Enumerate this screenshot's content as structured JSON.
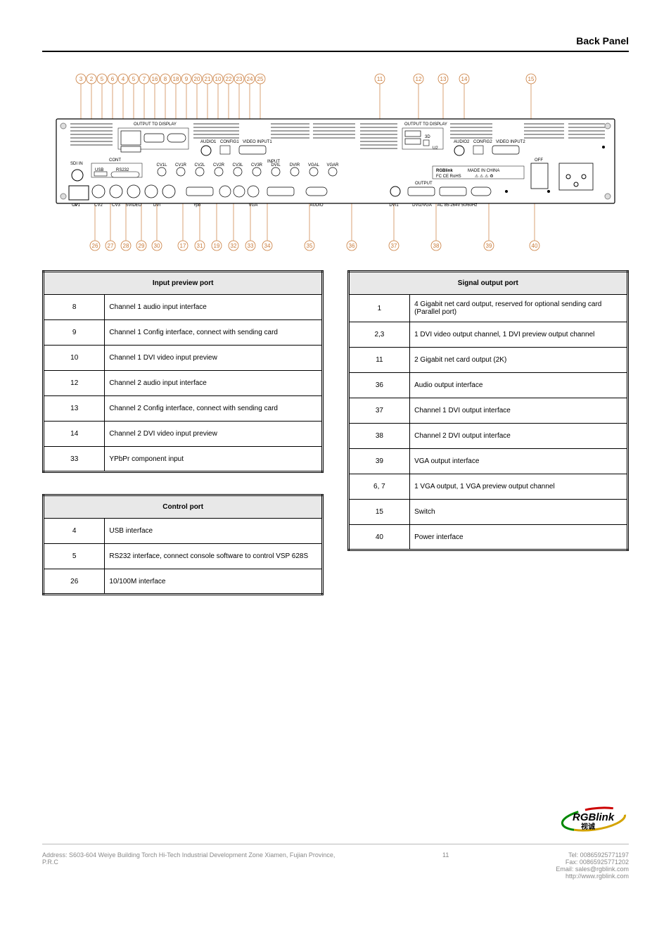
{
  "title": "Back Panel",
  "top_labels": [
    3,
    2,
    5,
    6,
    4,
    5,
    7,
    16,
    8,
    18,
    9,
    20,
    21,
    10,
    22,
    23,
    24,
    25,
    11,
    12,
    13,
    14,
    15
  ],
  "bottom_labels": [
    26,
    27,
    28,
    29,
    30,
    17,
    31,
    19,
    32,
    33,
    34,
    35,
    36,
    37,
    38,
    39,
    40
  ],
  "panel_text": {
    "output_to_display_1": "OUTPUT TO DISPLAY",
    "output_to_display_2": "OUTPUT TO DISPLAY",
    "audio1": "AUDIO1",
    "config1": "CONFIG1",
    "video_input1": "VIDEO INPUT1",
    "audio2": "AUDIO2",
    "config2": "CONFIG2",
    "video_input2": "VIDEO INPUT2",
    "sdi_in": "SDI IN",
    "cont": "CONT",
    "usb": "USB",
    "rs232": "RS232",
    "input": "INPUT",
    "output": "OUTPUT",
    "rgblink": "RGBlink",
    "made_in_china": "MADE IN CHINA",
    "compliance": "FC CE RoHS",
    "off": "OFF",
    "ip": "IP",
    "cv_row": [
      "CV1",
      "CV2",
      "CV3",
      "SVIDEO",
      "DVI",
      "Ypb",
      "",
      "VGA",
      "AUDIO",
      "DVI1",
      "DVI2/VGA",
      "AC 85-264V 50/60Hz"
    ],
    "in_row": [
      "CV1L",
      "CV1R",
      "CV2L",
      "CV2R",
      "CV3L",
      "CV3R",
      "DVIL",
      "DVIR",
      "VGAL",
      "VGAR"
    ]
  },
  "table1": {
    "title": "Input preview port",
    "rows": [
      {
        "num": "8",
        "desc": "Channel 1 audio input interface"
      },
      {
        "num": "9",
        "desc": "Channel 1 Config interface, connect with sending card"
      },
      {
        "num": "10",
        "desc": "Channel 1 DVI video input preview"
      },
      {
        "num": "12",
        "desc": "Channel 2 audio input interface"
      },
      {
        "num": "13",
        "desc": "Channel 2 Config interface, connect with sending card"
      },
      {
        "num": "14",
        "desc": "Channel 2 DVI video input preview"
      },
      {
        "num": "33",
        "desc": "YPbPr component input"
      }
    ]
  },
  "table2": {
    "title": "Control port",
    "rows": [
      {
        "num": "4",
        "desc": "USB interface"
      },
      {
        "num": "5",
        "desc": "RS232 interface, connect console software to control VSP 628S"
      },
      {
        "num": "26",
        "desc": "10/100M interface"
      }
    ]
  },
  "table3": {
    "title": "Signal output port",
    "rows": [
      {
        "num": "1",
        "desc": "4 Gigabit net card output, reserved for optional sending card (Parallel port)"
      },
      {
        "num": "2,3",
        "desc": "1 DVI video output channel, 1 DVI preview output channel"
      },
      {
        "num": "11",
        "desc": "2 Gigabit net card output (2K)"
      },
      {
        "num": "36",
        "desc": "Audio output interface"
      },
      {
        "num": "37",
        "desc": "Channel 1 DVI output interface"
      },
      {
        "num": "38",
        "desc": "Channel 2 DVI output interface"
      },
      {
        "num": "39",
        "desc": "VGA output interface"
      },
      {
        "num": "6, 7",
        "desc": "1 VGA output, 1 VGA preview output channel"
      },
      {
        "num": "15",
        "desc": "Switch"
      },
      {
        "num": "40",
        "desc": "Power interface"
      }
    ]
  },
  "diagram": {
    "panel_stroke": "#000000",
    "panel_fill": "#ffffff",
    "circle_stroke": "#c97b3a",
    "line_stroke": "#c97b3a",
    "line_width": 0.7
  },
  "footer": {
    "left_text": "Address: S603-604 Weiye Building Torch Hi-Tech Industrial Development Zone Xiamen, Fujian Province, P.R.C",
    "right_lines": [
      "Tel: 00865925771197",
      "Fax: 00865925771202",
      "Email: sales@rgblink.com",
      "http://www.rgblink.com"
    ]
  },
  "page_num": "11"
}
